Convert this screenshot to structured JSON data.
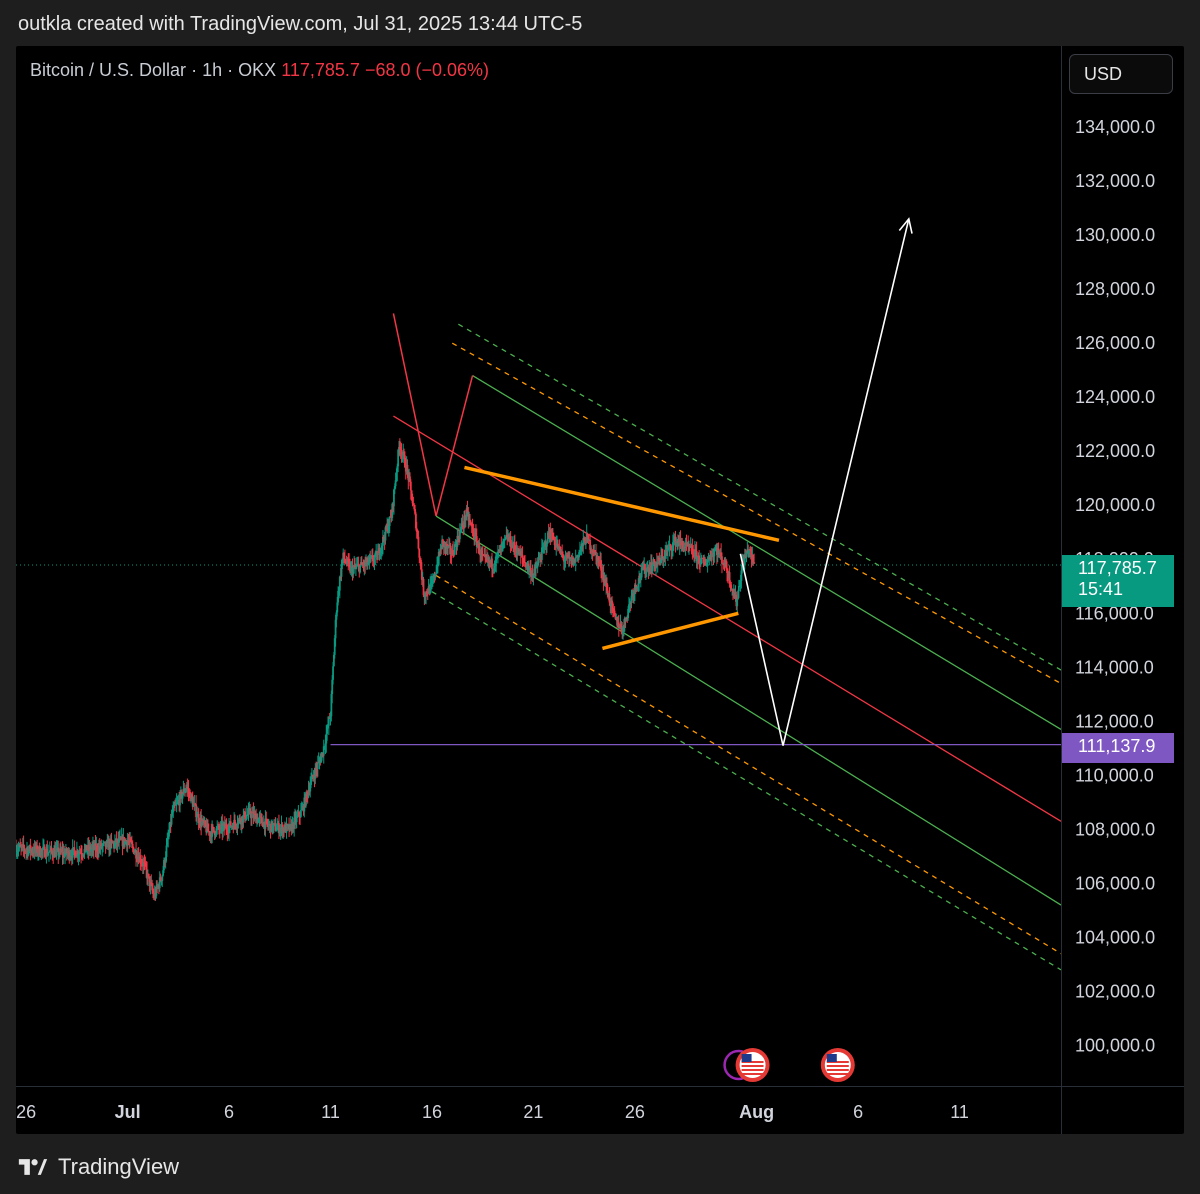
{
  "caption": "outkla created with TradingView.com, Jul 31, 2025 13:44 UTC-5",
  "symbol": {
    "name": "Bitcoin / U.S. Dollar",
    "interval": "1h",
    "exchange": "OKX",
    "separator": "·",
    "last_price": "117,785.7",
    "change": "−68.0 (−0.06%)"
  },
  "currency_button": "USD",
  "last_price_label": {
    "price": "117,785.7",
    "countdown": "15:41"
  },
  "level_label": "111,137.9",
  "footer": {
    "brand": "TradingView"
  },
  "colors": {
    "background": "#000000",
    "up": "#089981",
    "down": "#f23645",
    "level": "#7e57c2",
    "channel_center": "#f23645",
    "channel_inner": "#4caf50",
    "channel_outer_orange": "#ff9800",
    "channel_outer_green": "#4caf50",
    "triangle": "#ff9800",
    "projection": "#ffffff"
  },
  "chart_data": {
    "type": "candlestick",
    "title": "Bitcoin / U.S. Dollar · 1h · OKX",
    "timeframe": "1h",
    "ylim": [
      98500,
      137000
    ],
    "y_ticks": [
      100000,
      102000,
      104000,
      106000,
      108000,
      110000,
      112000,
      114000,
      116000,
      118000,
      120000,
      122000,
      124000,
      126000,
      128000,
      130000,
      132000,
      134000
    ],
    "y_tick_labels": [
      "100,000.0",
      "102,000.0",
      "104,000.0",
      "106,000.0",
      "108,000.0",
      "110,000.0",
      "112,000.0",
      "114,000.0",
      "116,000.0",
      "118,000.0",
      "120,000.0",
      "122,000.0",
      "124,000.0",
      "126,000.0",
      "128,000.0",
      "130,000.0",
      "132,000.0",
      "134,000.0"
    ],
    "x_range_days": [
      -5.5,
      46.0
    ],
    "x_ticks": [
      {
        "day": -5,
        "label": "26"
      },
      {
        "day": 0,
        "label": "Jul"
      },
      {
        "day": 5,
        "label": "6"
      },
      {
        "day": 10,
        "label": "11"
      },
      {
        "day": 15,
        "label": "16"
      },
      {
        "day": 20,
        "label": "21"
      },
      {
        "day": 25,
        "label": "26"
      },
      {
        "day": 31,
        "label": "Aug"
      },
      {
        "day": 36,
        "label": "6"
      },
      {
        "day": 41,
        "label": "11"
      }
    ],
    "price_path_daily": [
      {
        "day": -5.5,
        "price": 107300
      },
      {
        "day": -3.0,
        "price": 107100
      },
      {
        "day": -1.5,
        "price": 107300
      },
      {
        "day": 0.0,
        "price": 107600
      },
      {
        "day": 0.8,
        "price": 106700
      },
      {
        "day": 1.3,
        "price": 105500
      },
      {
        "day": 1.7,
        "price": 106300
      },
      {
        "day": 2.2,
        "price": 108600
      },
      {
        "day": 2.9,
        "price": 109600
      },
      {
        "day": 3.5,
        "price": 108400
      },
      {
        "day": 4.0,
        "price": 107900
      },
      {
        "day": 5.0,
        "price": 108100
      },
      {
        "day": 6.0,
        "price": 108600
      },
      {
        "day": 7.0,
        "price": 108100
      },
      {
        "day": 8.0,
        "price": 108000
      },
      {
        "day": 8.6,
        "price": 108700
      },
      {
        "day": 9.0,
        "price": 109700
      },
      {
        "day": 9.6,
        "price": 110800
      },
      {
        "day": 10.0,
        "price": 112300
      },
      {
        "day": 10.3,
        "price": 116300
      },
      {
        "day": 10.6,
        "price": 118100
      },
      {
        "day": 11.0,
        "price": 117600
      },
      {
        "day": 11.7,
        "price": 117800
      },
      {
        "day": 12.3,
        "price": 118100
      },
      {
        "day": 13.0,
        "price": 119600
      },
      {
        "day": 13.4,
        "price": 122300
      },
      {
        "day": 13.8,
        "price": 121200
      },
      {
        "day": 14.2,
        "price": 119400
      },
      {
        "day": 14.6,
        "price": 116700
      },
      {
        "day": 15.0,
        "price": 117000
      },
      {
        "day": 15.5,
        "price": 118600
      },
      {
        "day": 16.0,
        "price": 118200
      },
      {
        "day": 16.7,
        "price": 119700
      },
      {
        "day": 17.5,
        "price": 118000
      },
      {
        "day": 18.0,
        "price": 117800
      },
      {
        "day": 18.7,
        "price": 118800
      },
      {
        "day": 19.3,
        "price": 118200
      },
      {
        "day": 20.0,
        "price": 117400
      },
      {
        "day": 20.8,
        "price": 119000
      },
      {
        "day": 21.5,
        "price": 118000
      },
      {
        "day": 22.0,
        "price": 117900
      },
      {
        "day": 22.6,
        "price": 118800
      },
      {
        "day": 23.3,
        "price": 117800
      },
      {
        "day": 24.0,
        "price": 115800
      },
      {
        "day": 24.4,
        "price": 115400
      },
      {
        "day": 24.9,
        "price": 116800
      },
      {
        "day": 25.4,
        "price": 117600
      },
      {
        "day": 26.2,
        "price": 117900
      },
      {
        "day": 27.0,
        "price": 118700
      },
      {
        "day": 27.8,
        "price": 118300
      },
      {
        "day": 28.4,
        "price": 117800
      },
      {
        "day": 29.0,
        "price": 118400
      },
      {
        "day": 29.5,
        "price": 117700
      },
      {
        "day": 30.0,
        "price": 116400
      },
      {
        "day": 30.3,
        "price": 117800
      },
      {
        "day": 30.6,
        "price": 118400
      },
      {
        "day": 30.9,
        "price": 117785.7
      }
    ],
    "horizontal_level": {
      "price": 111137.9,
      "from_day": 10.0
    },
    "channel": {
      "center": {
        "start": {
          "day": 13.1,
          "price": 123300
        },
        "end": {
          "day": 46.0,
          "price": 108300
        },
        "color": "#f23645",
        "style": "solid"
      },
      "inner_upper": {
        "start": {
          "day": 17.0,
          "price": 124800
        },
        "end": {
          "day": 46.0,
          "price": 111700
        },
        "color": "#4caf50",
        "style": "solid"
      },
      "inner_lower": {
        "start": {
          "day": 15.2,
          "price": 119600
        },
        "end": {
          "day": 46.0,
          "price": 105200
        },
        "color": "#4caf50",
        "style": "solid"
      },
      "outer_upper_orange": {
        "start": {
          "day": 16.0,
          "price": 126000
        },
        "end": {
          "day": 46.0,
          "price": 113400
        },
        "color": "#ff9800",
        "style": "dashed"
      },
      "outer_upper_green": {
        "start": {
          "day": 16.3,
          "price": 126700
        },
        "end": {
          "day": 46.0,
          "price": 113900
        },
        "color": "#4caf50",
        "style": "dashed"
      },
      "outer_lower_orange": {
        "start": {
          "day": 15.2,
          "price": 117400
        },
        "end": {
          "day": 46.0,
          "price": 103400
        },
        "color": "#ff9800",
        "style": "dashed"
      },
      "outer_lower_green": {
        "start": {
          "day": 15.0,
          "price": 116800
        },
        "end": {
          "day": 46.0,
          "price": 102800
        },
        "color": "#4caf50",
        "style": "dashed"
      }
    },
    "pitchfork_handle": [
      {
        "day": 13.1,
        "price": 127100
      },
      {
        "day": 15.2,
        "price": 119600
      },
      {
        "day": 17.0,
        "price": 124800
      }
    ],
    "triangle": {
      "upper": {
        "start": {
          "day": 16.6,
          "price": 121400
        },
        "end": {
          "day": 32.1,
          "price": 118700
        }
      },
      "lower": {
        "start": {
          "day": 23.4,
          "price": 114700
        },
        "end": {
          "day": 30.1,
          "price": 116000
        }
      },
      "color": "#ff9800"
    },
    "projection": [
      {
        "day": 30.2,
        "price": 118200
      },
      {
        "day": 32.3,
        "price": 111100
      },
      {
        "day": 38.5,
        "price": 130600
      }
    ],
    "events": [
      {
        "day": 30.8,
        "icon": "us-flag-icon",
        "highlighted": true
      },
      {
        "day": 35.0,
        "icon": "us-flag-icon",
        "highlighted": false
      }
    ]
  }
}
